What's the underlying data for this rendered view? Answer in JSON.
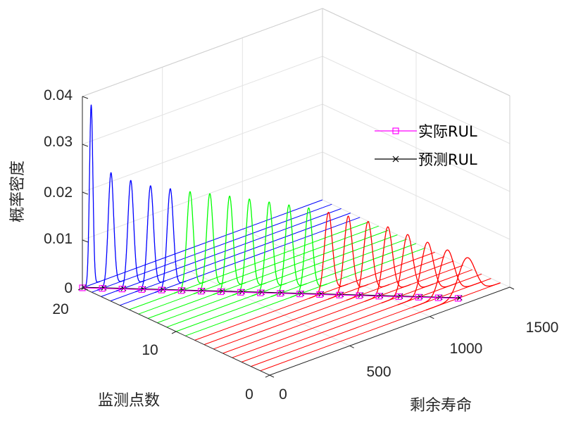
{
  "chart_data": {
    "type": "line",
    "view": "3d-waterfall",
    "xlabel": "剩余寿命",
    "ylabel": "监测点数",
    "zlabel": "概率密度",
    "xlim": [
      0,
      1500
    ],
    "ylim": [
      0,
      20
    ],
    "zlim": [
      0,
      0.04
    ],
    "x_ticks": [
      "0",
      "500",
      "1000",
      "1500"
    ],
    "y_ticks": [
      "0",
      "10",
      "20"
    ],
    "z_ticks": [
      "0",
      "0.01",
      "0.02",
      "0.03",
      "0.04"
    ],
    "grid": true,
    "legend_position": "right",
    "legend": [
      {
        "label": "实际RUL",
        "color": "#ff00ff",
        "marker": "square"
      },
      {
        "label": "预测RUL",
        "color": "#000000",
        "marker": "x"
      }
    ],
    "pdf_curves": {
      "monitoring_points": [
        20,
        19,
        18,
        17,
        16,
        15,
        14,
        13,
        12,
        11,
        10,
        9,
        8,
        7,
        6,
        5,
        4,
        3,
        2,
        1
      ],
      "peak_density": [
        0.0375,
        0.0235,
        0.022,
        0.021,
        0.0205,
        0.02,
        0.0197,
        0.0193,
        0.0188,
        0.0183,
        0.0178,
        0.0173,
        0.0165,
        0.0158,
        0.0148,
        0.0138,
        0.0123,
        0.0108,
        0.0093,
        0.0078
      ],
      "colors_by_group": [
        {
          "points": "20-16",
          "color": "#0000ff"
        },
        {
          "points": "15-9",
          "color": "#00ff00"
        },
        {
          "points": "8-1",
          "color": "#ff0000"
        }
      ]
    },
    "actual_rul": {
      "y": [
        20,
        19,
        18,
        17,
        16,
        15,
        14,
        13,
        12,
        11,
        10,
        9,
        8,
        7,
        6,
        5,
        4,
        3,
        2,
        1
      ],
      "x": [
        0,
        65,
        130,
        195,
        260,
        325,
        390,
        455,
        520,
        585,
        650,
        715,
        780,
        845,
        910,
        975,
        1040,
        1105,
        1170,
        1235
      ]
    },
    "predicted_rul": {
      "y": [
        20,
        19,
        18,
        17,
        16,
        15,
        14,
        13,
        12,
        11,
        10,
        9,
        8,
        7,
        6,
        5,
        4,
        3,
        2,
        1
      ],
      "x": [
        10,
        75,
        140,
        205,
        270,
        335,
        400,
        465,
        530,
        595,
        660,
        725,
        790,
        855,
        920,
        985,
        1050,
        1115,
        1180,
        1245
      ]
    }
  }
}
